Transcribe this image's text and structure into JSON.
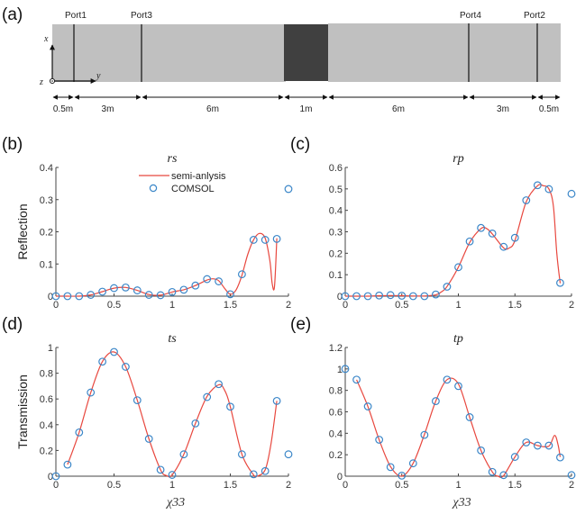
{
  "diagram": {
    "panel_label": "(a)",
    "ports": [
      "Port1",
      "Port3",
      "Port4",
      "Port2"
    ],
    "segments": [
      "0.5m",
      "3m",
      "6m",
      "1m",
      "6m",
      "3m",
      "0.5m"
    ],
    "segment_lengths": [
      0.5,
      3,
      6,
      1,
      6,
      3,
      0.5
    ],
    "axes": {
      "x": "x",
      "y": "y",
      "z": "z"
    },
    "colors": {
      "medium": "#c0c0c0",
      "slab": "#404040"
    }
  },
  "legend": {
    "line_label": "semi-anlysis",
    "marker_label": "COMSOL"
  },
  "colors": {
    "line": "#e8483f",
    "marker": "#3a86c8"
  },
  "chart_data": [
    {
      "id": "b",
      "panel_label": "(b)",
      "type": "line",
      "title": "rs",
      "xlabel": "",
      "ylabel": "Reflection",
      "xlim": [
        0,
        2
      ],
      "ylim": [
        0,
        0.4
      ],
      "xticks": [
        "0",
        "0.5",
        "1",
        "1.5",
        "2"
      ],
      "yticks": [
        "0",
        "0.1",
        "0.2",
        "0.3",
        "0.4"
      ],
      "series": [
        {
          "name": "semi-anlysis",
          "kind": "line",
          "x": [
            0,
            0.1,
            0.2,
            0.3,
            0.4,
            0.5,
            0.6,
            0.7,
            0.8,
            0.9,
            1.0,
            1.1,
            1.2,
            1.3,
            1.35,
            1.4,
            1.45,
            1.5,
            1.55,
            1.6,
            1.65,
            1.7,
            1.75,
            1.8,
            1.84,
            1.86,
            1.88,
            1.9
          ],
          "y": [
            0,
            0,
            0,
            0.004,
            0.014,
            0.025,
            0.027,
            0.018,
            0.005,
            0.003,
            0.013,
            0.02,
            0.033,
            0.05,
            0.054,
            0.048,
            0.025,
            0.006,
            0.02,
            0.065,
            0.13,
            0.175,
            0.195,
            0.18,
            0.11,
            0.04,
            0.03,
            0.18
          ]
        },
        {
          "name": "COMSOL",
          "kind": "scatter",
          "x": [
            0,
            0.1,
            0.2,
            0.3,
            0.4,
            0.5,
            0.6,
            0.7,
            0.8,
            0.9,
            1.0,
            1.1,
            1.2,
            1.3,
            1.4,
            1.5,
            1.6,
            1.7,
            1.8,
            1.9,
            2.0
          ],
          "y": [
            0,
            0,
            0,
            0.004,
            0.014,
            0.025,
            0.027,
            0.018,
            0.004,
            0.003,
            0.013,
            0.02,
            0.033,
            0.053,
            0.046,
            0.006,
            0.068,
            0.175,
            0.175,
            0.178,
            0.333
          ]
        }
      ]
    },
    {
      "id": "c",
      "panel_label": "(c)",
      "type": "line",
      "title": "rp",
      "xlabel": "",
      "ylabel": "",
      "xlim": [
        0,
        2
      ],
      "ylim": [
        0,
        0.6
      ],
      "xticks": [
        "0",
        "0.5",
        "1",
        "1.5",
        "2"
      ],
      "yticks": [
        "0",
        "0.1",
        "0.2",
        "0.3",
        "0.4",
        "0.5",
        "0.6"
      ],
      "series": [
        {
          "name": "semi-anlysis",
          "kind": "line",
          "x": [
            0,
            0.1,
            0.2,
            0.3,
            0.4,
            0.5,
            0.6,
            0.7,
            0.8,
            0.85,
            0.9,
            1.0,
            1.1,
            1.2,
            1.25,
            1.3,
            1.4,
            1.45,
            1.5,
            1.6,
            1.7,
            1.75,
            1.8,
            1.84,
            1.87,
            1.9
          ],
          "y": [
            0,
            0,
            0,
            0.002,
            0.003,
            0.002,
            0.001,
            0.001,
            0.006,
            0.02,
            0.045,
            0.135,
            0.25,
            0.315,
            0.315,
            0.29,
            0.225,
            0.225,
            0.26,
            0.44,
            0.515,
            0.515,
            0.5,
            0.42,
            0.2,
            0.06
          ]
        },
        {
          "name": "COMSOL",
          "kind": "scatter",
          "x": [
            0,
            0.1,
            0.2,
            0.3,
            0.4,
            0.5,
            0.6,
            0.7,
            0.8,
            0.9,
            1.0,
            1.1,
            1.2,
            1.3,
            1.4,
            1.5,
            1.6,
            1.7,
            1.8,
            1.9,
            2.0
          ],
          "y": [
            0,
            0,
            0,
            0.003,
            0.005,
            0.002,
            0,
            0,
            0.008,
            0.044,
            0.135,
            0.255,
            0.318,
            0.292,
            0.23,
            0.272,
            0.447,
            0.517,
            0.499,
            0.062,
            0.477
          ]
        }
      ]
    },
    {
      "id": "d",
      "panel_label": "(d)",
      "type": "line",
      "title": "ts",
      "xlabel": "χ33",
      "ylabel": "Transmission",
      "xlim": [
        0,
        2
      ],
      "ylim": [
        0,
        1
      ],
      "xticks": [
        "0",
        "0.5",
        "1",
        "1.5",
        "2"
      ],
      "yticks": [
        "0",
        "0.2",
        "0.4",
        "0.6",
        "0.8",
        "1"
      ],
      "series": [
        {
          "name": "semi-anlysis",
          "kind": "line",
          "x": [
            0.1,
            0.2,
            0.3,
            0.4,
            0.5,
            0.6,
            0.7,
            0.8,
            0.9,
            0.95,
            1.0,
            1.1,
            1.2,
            1.3,
            1.4,
            1.45,
            1.5,
            1.6,
            1.7,
            1.73,
            1.8,
            1.85,
            1.9
          ],
          "y": [
            0.09,
            0.34,
            0.65,
            0.89,
            0.965,
            0.85,
            0.59,
            0.29,
            0.05,
            0.005,
            0.01,
            0.17,
            0.41,
            0.62,
            0.71,
            0.67,
            0.54,
            0.17,
            0.01,
            0.0,
            0.05,
            0.25,
            0.585
          ]
        },
        {
          "name": "COMSOL",
          "kind": "scatter",
          "x": [
            0,
            0.1,
            0.2,
            0.3,
            0.4,
            0.5,
            0.6,
            0.7,
            0.8,
            0.9,
            1.0,
            1.1,
            1.2,
            1.3,
            1.4,
            1.5,
            1.6,
            1.7,
            1.8,
            1.9,
            2.0
          ],
          "y": [
            0,
            0.09,
            0.34,
            0.65,
            0.89,
            0.965,
            0.85,
            0.59,
            0.29,
            0.05,
            0.01,
            0.17,
            0.41,
            0.615,
            0.715,
            0.54,
            0.17,
            0.015,
            0.04,
            0.585,
            0.17
          ]
        }
      ]
    },
    {
      "id": "e",
      "panel_label": "(e)",
      "type": "line",
      "title": "tp",
      "xlabel": "χ33",
      "ylabel": "",
      "xlim": [
        0,
        2
      ],
      "ylim": [
        0,
        1.2
      ],
      "xticks": [
        "0",
        "0.5",
        "1",
        "1.5",
        "2"
      ],
      "yticks": [
        "0",
        "0.2",
        "0.4",
        "0.6",
        "0.8",
        "1",
        "1.2"
      ],
      "series": [
        {
          "name": "semi-anlysis",
          "kind": "line",
          "x": [
            0.1,
            0.2,
            0.3,
            0.4,
            0.5,
            0.6,
            0.7,
            0.8,
            0.9,
            1.0,
            1.1,
            1.2,
            1.3,
            1.35,
            1.4,
            1.5,
            1.6,
            1.7,
            1.8,
            1.85,
            1.88,
            1.9
          ],
          "y": [
            0.9,
            0.65,
            0.34,
            0.09,
            0.0,
            0.12,
            0.39,
            0.7,
            0.9,
            0.86,
            0.55,
            0.24,
            0.04,
            0.0,
            0.005,
            0.18,
            0.315,
            0.285,
            0.28,
            0.38,
            0.3,
            0.18
          ]
        },
        {
          "name": "COMSOL",
          "kind": "scatter",
          "x": [
            0,
            0.1,
            0.2,
            0.3,
            0.4,
            0.5,
            0.6,
            0.7,
            0.8,
            0.9,
            1.0,
            1.1,
            1.2,
            1.3,
            1.4,
            1.5,
            1.6,
            1.7,
            1.8,
            1.9,
            2.0
          ],
          "y": [
            1.0,
            0.9,
            0.65,
            0.34,
            0.085,
            0.005,
            0.12,
            0.385,
            0.7,
            0.9,
            0.84,
            0.55,
            0.24,
            0.04,
            0.01,
            0.18,
            0.315,
            0.285,
            0.285,
            0.175,
            0.01
          ]
        }
      ]
    }
  ]
}
